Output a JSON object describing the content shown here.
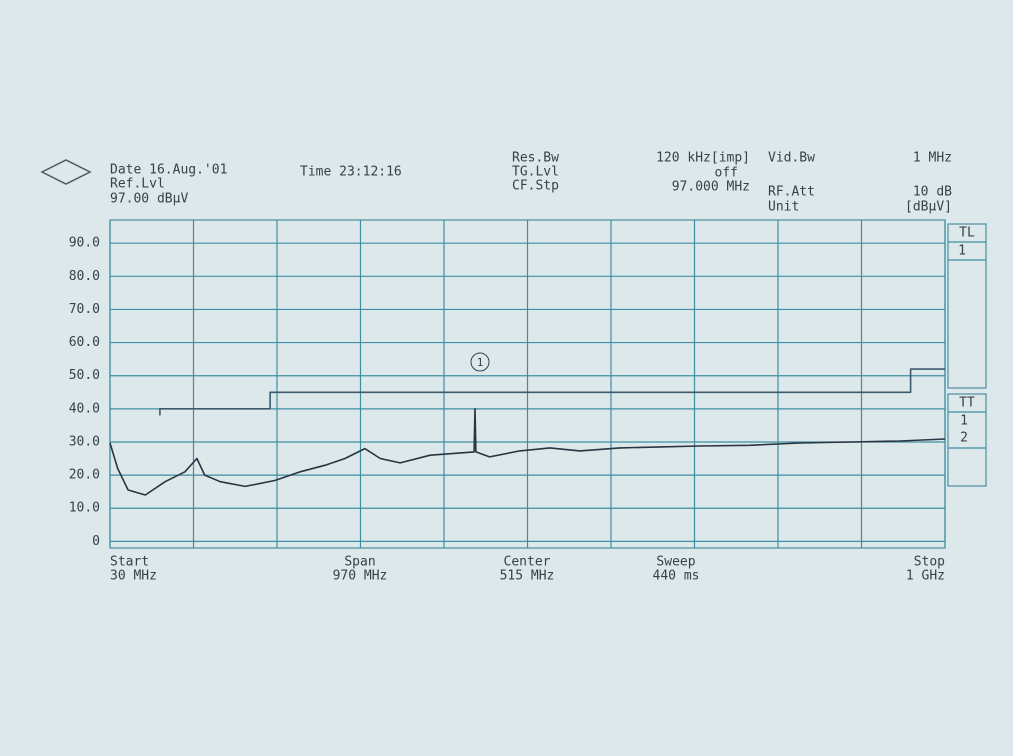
{
  "chart_data": {
    "type": "line",
    "header": {
      "date": "Date 16.Aug.'01",
      "time": "Time 23:12:16",
      "ref_lvl": "Ref.Lvl",
      "ref_value": "97.00 dBµV",
      "res_bw": "Res.Bw",
      "res_bw_value": "120 kHz[imp]",
      "tg_lvl": "TG.Lvl",
      "tg_value": "off",
      "cf_stp": "CF.Stp",
      "cf_value": "97.000 MHz",
      "vid_bw": "Vid.Bw",
      "vid_value": "1 MHz",
      "rf_att": "RF.Att",
      "rf_value": "10 dB",
      "unit": "Unit",
      "unit_value": "[dBµV]"
    },
    "side": {
      "tl": "TL",
      "tl1": "1",
      "tt": "TT",
      "tt1": "1",
      "tt2": "2"
    },
    "footer": {
      "start": "Start",
      "start_value": "30 MHz",
      "span": "Span",
      "span_value": "970 MHz",
      "center": "Center",
      "center_value": "515 MHz",
      "sweep": "Sweep",
      "sweep_value": "440 ms",
      "stop": "Stop",
      "stop_value": "1 GHz"
    },
    "annotation": "1",
    "xlim": [
      30,
      1000
    ],
    "xgrid": [
      30,
      127,
      224,
      321,
      418,
      515,
      612,
      709,
      806,
      903,
      1000
    ],
    "ylim": [
      -2,
      97
    ],
    "yticks": [
      0,
      {
        "value": 10,
        "label": "10.0"
      },
      {
        "value": 20,
        "label": "20.0"
      },
      {
        "value": 30,
        "label": "30.0"
      },
      {
        "value": 40,
        "label": "40.0"
      },
      {
        "value": 50,
        "label": "50.0"
      },
      {
        "value": 60,
        "label": "60.0"
      },
      {
        "value": 70,
        "label": "70.0"
      },
      {
        "value": 80,
        "label": "80.0"
      },
      {
        "value": 90,
        "label": "90.0"
      }
    ],
    "grid": true,
    "series": [
      {
        "color": "#2b3440",
        "x": [
          30,
          39,
          51,
          71,
          94,
          117,
          131,
          140,
          158,
          187,
          222,
          251,
          280,
          303,
          326,
          344,
          367,
          402,
          437,
          453,
          454,
          455,
          471,
          506,
          541,
          576,
          622,
          669,
          715,
          773,
          831,
          890,
          948,
          1000
        ],
        "values": [
          29.7,
          22,
          15.5,
          14,
          18,
          21,
          25,
          20,
          18,
          16.6,
          18.4,
          21,
          23,
          25,
          28,
          25,
          23.7,
          26,
          26.7,
          27,
          40,
          27,
          25.5,
          27.3,
          28.2,
          27.3,
          28.2,
          28.5,
          28.8,
          29,
          29.7,
          30,
          30.3,
          30.9
        ]
      },
      {
        "color": "#3c5a6a",
        "x": [
          88,
          88,
          216,
          216,
          960,
          960,
          1000
        ],
        "values": [
          38,
          40,
          40,
          45,
          45,
          52,
          52
        ]
      }
    ]
  }
}
